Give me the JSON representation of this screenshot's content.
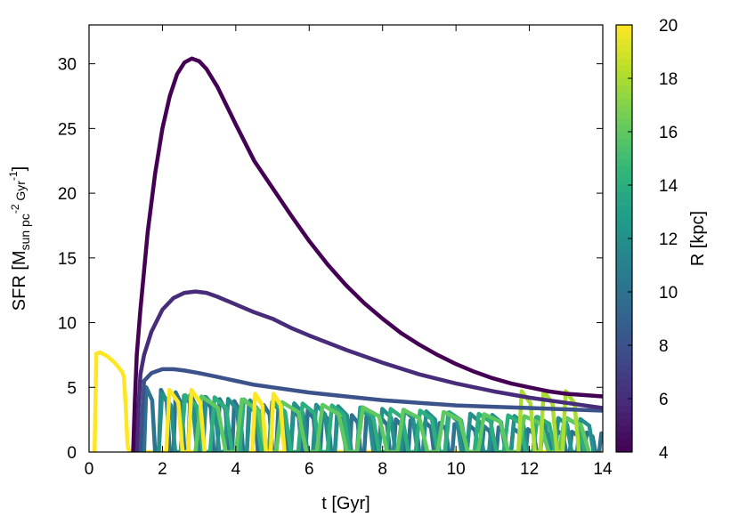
{
  "chart_data": {
    "type": "line",
    "xlabel": "t [Gyr]",
    "ylabel_parts": {
      "main": "SFR [M",
      "sub": "sun pc",
      "sup1": "-2",
      "mid": " Gyr",
      "sup2": "-1",
      "end": "]"
    },
    "xlim": [
      0,
      14
    ],
    "ylim": [
      0,
      33
    ],
    "xticks": [
      0,
      2,
      4,
      6,
      8,
      10,
      12,
      14
    ],
    "yticks": [
      0,
      5,
      10,
      15,
      20,
      25,
      30
    ],
    "colorbar": {
      "label": "R  [kpc]",
      "range": [
        4,
        20
      ],
      "ticks": [
        4,
        6,
        8,
        10,
        12,
        14,
        16,
        18,
        20
      ],
      "colormap": "viridis"
    },
    "series": [
      {
        "r": 4,
        "x": [
          1.2,
          1.25,
          1.3,
          1.4,
          1.6,
          1.8,
          2.0,
          2.2,
          2.4,
          2.6,
          2.8,
          3.0,
          3.2,
          3.5,
          4.0,
          4.5,
          5.0,
          5.5,
          6.0,
          6.5,
          7.0,
          7.5,
          8.0,
          8.5,
          9.0,
          9.5,
          10.0,
          10.5,
          11.0,
          11.5,
          12.0,
          12.5,
          13.0,
          13.5,
          14.0
        ],
        "y": [
          0,
          4,
          7.5,
          11,
          17,
          21.5,
          25,
          27.5,
          29.2,
          30.1,
          30.4,
          30.2,
          29.6,
          28.2,
          25.3,
          22.5,
          20.4,
          18.3,
          16.3,
          14.5,
          12.9,
          11.5,
          10.3,
          9.2,
          8.3,
          7.5,
          6.8,
          6.2,
          5.7,
          5.3,
          5.0,
          4.7,
          4.5,
          4.4,
          4.3
        ]
      },
      {
        "r": 6,
        "x": [
          1.3,
          1.35,
          1.4,
          1.5,
          1.7,
          2.0,
          2.3,
          2.6,
          2.9,
          3.2,
          3.5,
          4.0,
          4.5,
          5.0,
          5.5,
          6.0,
          7.0,
          8.0,
          9.0,
          10.0,
          11.0,
          12.0,
          13.0,
          14.0
        ],
        "y": [
          0,
          3.5,
          6.0,
          7.5,
          9.3,
          11.0,
          11.9,
          12.3,
          12.4,
          12.3,
          12.0,
          11.4,
          10.8,
          10.3,
          9.6,
          9.0,
          7.9,
          6.9,
          6.0,
          5.3,
          4.7,
          4.2,
          3.8,
          3.4
        ]
      },
      {
        "r": 8,
        "x": [
          1.4,
          1.45,
          1.5,
          1.7,
          2.0,
          2.3,
          2.6,
          3.0,
          3.5,
          4.0,
          4.5,
          5.0,
          6.0,
          7.0,
          8.0,
          9.0,
          10.0,
          11.0,
          12.0,
          13.0,
          14.0
        ],
        "y": [
          0,
          3.0,
          5.5,
          6.1,
          6.4,
          6.4,
          6.3,
          6.1,
          5.8,
          5.5,
          5.2,
          5.0,
          4.6,
          4.3,
          4.0,
          3.8,
          3.6,
          3.5,
          3.4,
          3.3,
          3.2
        ]
      },
      {
        "r": 20,
        "x": [
          0.15,
          0.2,
          0.3,
          0.5,
          0.7,
          0.9,
          0.95,
          1.0,
          1.05,
          1.1
        ],
        "y": [
          0,
          7.6,
          7.7,
          7.4,
          6.9,
          6.2,
          5.8,
          3.5,
          0.5,
          0
        ]
      }
    ],
    "oscillating_series": [
      {
        "r": 10,
        "start": 1.5,
        "end": 14.0,
        "period": 0.4,
        "peak": 5.0,
        "decay": 0.1
      },
      {
        "r": 12,
        "start": 1.9,
        "end": 13.5,
        "period": 0.6,
        "peak": 4.5,
        "decay": 0.05
      },
      {
        "r": 14,
        "start": 2.5,
        "end": 13.2,
        "period": 0.8,
        "peak": 4.4,
        "decay": 0.05
      },
      {
        "r": 16,
        "start": 2.9,
        "end": 12.9,
        "period": 1.1,
        "peak": 4.3,
        "decay": 0.05
      },
      {
        "r": 18,
        "start": 11.7,
        "end": 13.0,
        "period": 0.6,
        "peak": 4.7,
        "decay": 0.0
      },
      {
        "r": 20,
        "start": 2.1,
        "end": 2.7,
        "period": 0.6,
        "peak": 4.8,
        "decay": 0.0
      },
      {
        "r": 20,
        "start": 4.45,
        "end": 4.95,
        "period": 0.5,
        "peak": 4.5,
        "decay": 0.0
      }
    ],
    "baseline_series": {
      "r": 20,
      "x": [
        1.1,
        14.0
      ],
      "y": [
        0,
        0
      ]
    }
  }
}
